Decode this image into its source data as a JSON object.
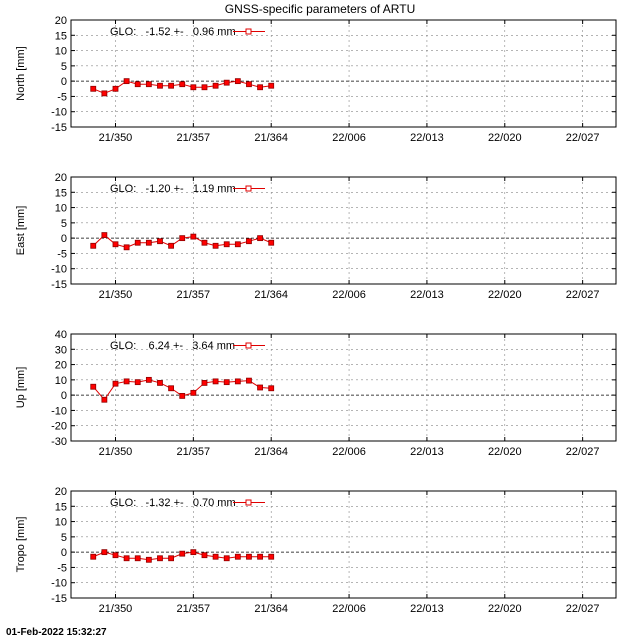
{
  "title": "GNSS-specific parameters of ARTU",
  "footer": "01-Feb-2022 15:32:27",
  "colors": {
    "series": "#e00000",
    "marker_fill": "#ff0000",
    "grid": "#888888"
  },
  "chart_data": [
    {
      "type": "line",
      "ylabel": "North [mm]",
      "ylim": [
        -15,
        20
      ],
      "yticks": [
        -15,
        -10,
        -5,
        0,
        5,
        10,
        15,
        20
      ],
      "legend_text": "GLO:   -1.52 +-   0.96 mm",
      "legend_placement": "top-left",
      "grid": true,
      "series": [
        {
          "values": [
            -2.5,
            -4.0,
            -2.5,
            0.0,
            -1.0,
            -1.0,
            -1.5,
            -1.5,
            -1.0,
            -2.0,
            -2.0,
            -1.5,
            -0.5,
            0.0,
            -1.0,
            -2.0,
            -1.5
          ]
        }
      ]
    },
    {
      "type": "line",
      "ylabel": "East [mm]",
      "ylim": [
        -15,
        20
      ],
      "yticks": [
        -15,
        -10,
        -5,
        0,
        5,
        10,
        15,
        20
      ],
      "legend_text": "GLO:   -1.20 +-   1.19 mm",
      "legend_placement": "top-left",
      "grid": true,
      "series": [
        {
          "values": [
            -2.5,
            1.0,
            -2.0,
            -3.0,
            -1.5,
            -1.5,
            -1.0,
            -2.5,
            0.0,
            0.5,
            -1.5,
            -2.5,
            -2.0,
            -2.0,
            -1.0,
            0.0,
            -1.5
          ]
        }
      ]
    },
    {
      "type": "line",
      "ylabel": "Up [mm]",
      "ylim": [
        -30,
        40
      ],
      "yticks": [
        -30,
        -20,
        -10,
        0,
        10,
        20,
        30,
        40
      ],
      "legend_text": "GLO:    6.24 +-   3.64 mm",
      "legend_placement": "top-left",
      "grid": true,
      "series": [
        {
          "values": [
            5.5,
            -3.0,
            7.5,
            9.0,
            8.5,
            10.0,
            8.0,
            4.5,
            -0.5,
            1.5,
            8.0,
            9.0,
            8.5,
            9.0,
            9.5,
            5.0,
            4.5
          ]
        }
      ]
    },
    {
      "type": "line",
      "ylabel": "Tropo [mm]",
      "ylim": [
        -15,
        20
      ],
      "yticks": [
        -15,
        -10,
        -5,
        0,
        5,
        10,
        15,
        20
      ],
      "legend_text": "GLO:   -1.32 +-   0.70 mm",
      "legend_placement": "top-left",
      "grid": true,
      "series": [
        {
          "values": [
            -1.5,
            0.0,
            -1.0,
            -2.0,
            -2.0,
            -2.5,
            -2.0,
            -2.0,
            -0.5,
            0.0,
            -1.0,
            -1.5,
            -2.0,
            -1.5,
            -1.5,
            -1.5,
            -1.5
          ]
        }
      ]
    }
  ],
  "shared_x": {
    "label_epochs": [
      "21/350",
      "21/357",
      "21/364",
      "22/006",
      "22/013",
      "22/020",
      "22/027"
    ],
    "first_point_day": 348,
    "last_point_day": 364,
    "xlim_days": [
      346,
      395
    ],
    "tick_days": [
      350,
      357,
      364,
      371,
      378,
      385,
      392
    ]
  }
}
